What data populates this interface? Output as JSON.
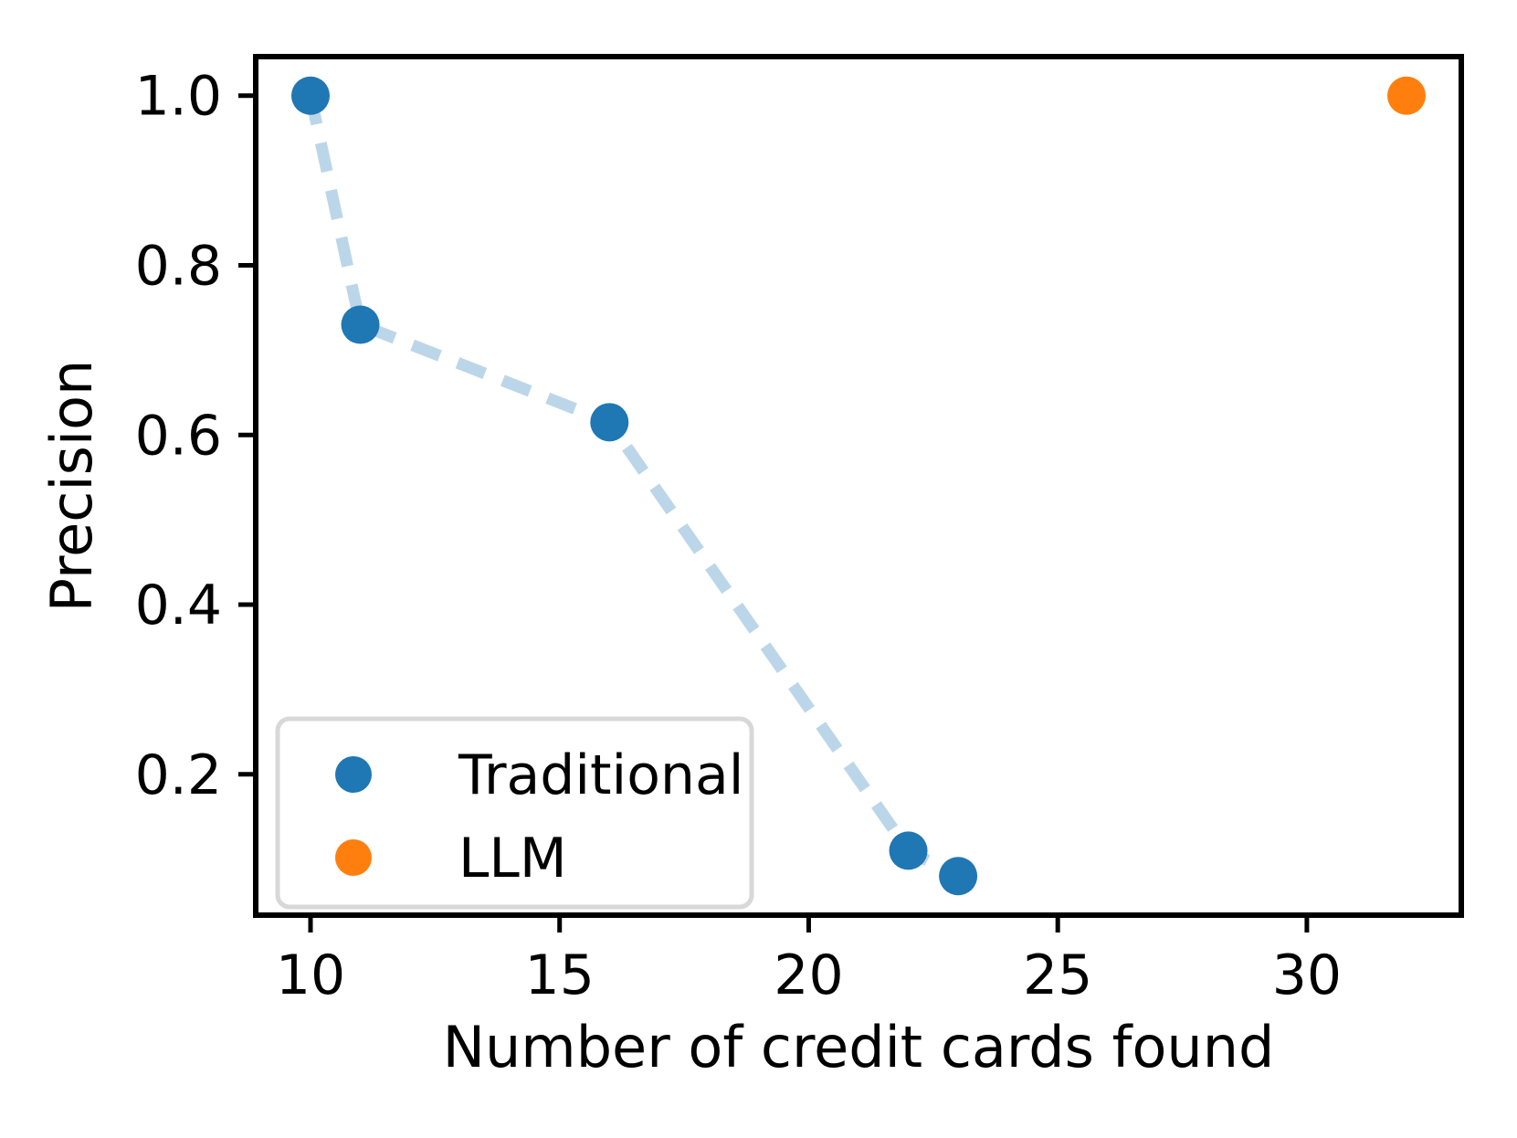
{
  "figure": {
    "background": "#ffffff",
    "text_color": "#000000",
    "spine_color": "#000000"
  },
  "chart_data": {
    "type": "scatter",
    "title": "",
    "xlabel": "Number of credit cards found",
    "ylabel": "Precision",
    "xlim": [
      8.9,
      33.1
    ],
    "ylim": [
      0.034,
      1.046
    ],
    "grid": false,
    "xticks": {
      "values": [
        10,
        15,
        20,
        25,
        30
      ],
      "labels": [
        "10",
        "15",
        "20",
        "25",
        "30"
      ]
    },
    "yticks": {
      "values": [
        1.0,
        0.8,
        0.6,
        0.4,
        0.2
      ],
      "labels": [
        "1.0",
        "0.8",
        "0.6",
        "0.4",
        "0.2"
      ]
    },
    "series": [
      {
        "name": "Traditional",
        "type": "scatter-with-dashed-line",
        "marker_color": "#1f77b4",
        "line_color": "#bcd6e9",
        "line_style": "dashed",
        "x": [
          10,
          11,
          16,
          22,
          23
        ],
        "y": [
          1.0,
          0.73,
          0.615,
          0.11,
          0.08
        ]
      },
      {
        "name": "LLM",
        "type": "scatter",
        "marker_color": "#ff7f0e",
        "x": [
          32
        ],
        "y": [
          1.0
        ]
      }
    ],
    "legend": {
      "position": "lower left",
      "border_color": "#d8d8d8",
      "background": "#ffffff",
      "entries": [
        "Traditional",
        "LLM"
      ]
    }
  }
}
